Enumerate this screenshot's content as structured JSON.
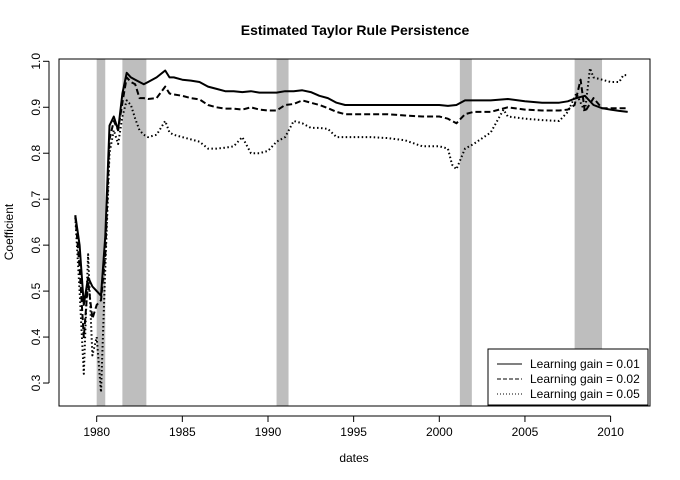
{
  "chart_data": {
    "type": "line",
    "title": "Estimated Taylor Rule Persistence",
    "xlabel": "dates",
    "ylabel": "Coefficient",
    "xlim": [
      1977.8,
      2012.3
    ],
    "ylim": [
      0.25,
      1.005
    ],
    "xticks": [
      1980,
      1985,
      1990,
      1995,
      2000,
      2005,
      2010
    ],
    "yticks": [
      0.3,
      0.4,
      0.5,
      0.6,
      0.7,
      0.8,
      0.9,
      1.0
    ],
    "ytick_labels": [
      "0.3",
      "0.4",
      "0.5",
      "0.6",
      "0.7",
      "0.8",
      "0.9",
      "1.0"
    ],
    "grid": false,
    "legend_position": "bottom-right",
    "recession_bands": [
      [
        1980.0,
        1980.5
      ],
      [
        1981.5,
        1982.9
      ],
      [
        1990.5,
        1991.2
      ],
      [
        2001.2,
        2001.9
      ],
      [
        2007.9,
        2009.5
      ]
    ],
    "band_color": "#bebebe",
    "line_color": "#000000",
    "series": [
      {
        "name": "Learning gain = 0.01",
        "style": "solid",
        "x": [
          1978.75,
          1979.0,
          1979.25,
          1979.5,
          1979.75,
          1980.0,
          1980.25,
          1980.5,
          1980.75,
          1981.0,
          1981.25,
          1981.5,
          1981.75,
          1982.0,
          1982.25,
          1982.5,
          1982.75,
          1983.0,
          1983.5,
          1984.0,
          1984.25,
          1984.5,
          1985.0,
          1985.5,
          1986.0,
          1986.5,
          1987.0,
          1987.5,
          1988.0,
          1988.5,
          1989.0,
          1989.5,
          1990.0,
          1990.5,
          1991.0,
          1991.5,
          1992.0,
          1992.5,
          1993.0,
          1993.5,
          1994.0,
          1994.5,
          1995.0,
          1996.0,
          1997.0,
          1998.0,
          1999.0,
          2000.0,
          2000.5,
          2001.0,
          2001.5,
          2002.0,
          2003.0,
          2004.0,
          2005.0,
          2006.0,
          2007.0,
          2007.5,
          2008.0,
          2008.5,
          2009.0,
          2009.5,
          2010.0,
          2010.5,
          2011.0
        ],
        "y": [
          0.665,
          0.6,
          0.47,
          0.53,
          0.51,
          0.5,
          0.49,
          0.62,
          0.86,
          0.88,
          0.85,
          0.93,
          0.975,
          0.965,
          0.96,
          0.955,
          0.95,
          0.955,
          0.965,
          0.98,
          0.965,
          0.965,
          0.96,
          0.958,
          0.955,
          0.945,
          0.94,
          0.935,
          0.935,
          0.933,
          0.935,
          0.932,
          0.932,
          0.932,
          0.935,
          0.935,
          0.937,
          0.933,
          0.925,
          0.92,
          0.91,
          0.905,
          0.905,
          0.905,
          0.905,
          0.905,
          0.905,
          0.905,
          0.903,
          0.905,
          0.915,
          0.915,
          0.915,
          0.918,
          0.913,
          0.91,
          0.91,
          0.913,
          0.92,
          0.925,
          0.905,
          0.898,
          0.895,
          0.892,
          0.89
        ]
      },
      {
        "name": "Learning gain = 0.02",
        "style": "dashed",
        "x": [
          1978.75,
          1979.0,
          1979.25,
          1979.5,
          1979.75,
          1980.0,
          1980.25,
          1980.5,
          1980.75,
          1981.0,
          1981.25,
          1981.5,
          1981.75,
          1982.0,
          1982.25,
          1982.5,
          1982.75,
          1983.0,
          1983.5,
          1984.0,
          1984.25,
          1984.5,
          1985.0,
          1985.5,
          1986.0,
          1986.5,
          1987.0,
          1987.5,
          1988.0,
          1988.5,
          1989.0,
          1989.5,
          1990.0,
          1990.5,
          1991.0,
          1991.5,
          1992.0,
          1992.5,
          1993.0,
          1993.5,
          1994.0,
          1994.5,
          1995.0,
          1996.0,
          1997.0,
          1998.0,
          1999.0,
          2000.0,
          2000.5,
          2001.0,
          2001.5,
          2002.0,
          2003.0,
          2004.0,
          2005.0,
          2006.0,
          2007.0,
          2007.5,
          2007.9,
          2008.25,
          2008.5,
          2009.0,
          2009.5,
          2010.0,
          2010.5,
          2011.0
        ],
        "y": [
          0.665,
          0.55,
          0.4,
          0.52,
          0.44,
          0.47,
          0.48,
          0.58,
          0.83,
          0.87,
          0.85,
          0.91,
          0.965,
          0.955,
          0.95,
          0.92,
          0.92,
          0.918,
          0.92,
          0.945,
          0.93,
          0.928,
          0.925,
          0.92,
          0.917,
          0.905,
          0.9,
          0.897,
          0.897,
          0.895,
          0.9,
          0.895,
          0.893,
          0.893,
          0.905,
          0.907,
          0.915,
          0.91,
          0.905,
          0.898,
          0.89,
          0.885,
          0.885,
          0.885,
          0.885,
          0.882,
          0.88,
          0.88,
          0.875,
          0.865,
          0.885,
          0.89,
          0.89,
          0.9,
          0.895,
          0.893,
          0.893,
          0.895,
          0.905,
          0.96,
          0.89,
          0.92,
          0.898,
          0.898,
          0.898,
          0.898
        ]
      },
      {
        "name": "Learning gain = 0.05",
        "style": "dotted",
        "x": [
          1978.75,
          1979.0,
          1979.25,
          1979.5,
          1979.75,
          1980.0,
          1980.25,
          1980.5,
          1980.75,
          1981.0,
          1981.25,
          1981.5,
          1981.75,
          1982.0,
          1982.25,
          1982.5,
          1982.75,
          1983.0,
          1983.5,
          1984.0,
          1984.25,
          1984.5,
          1985.0,
          1985.5,
          1986.0,
          1986.5,
          1987.0,
          1987.5,
          1988.0,
          1988.5,
          1989.0,
          1989.5,
          1990.0,
          1990.5,
          1991.0,
          1991.5,
          1992.0,
          1992.5,
          1993.0,
          1993.5,
          1994.0,
          1994.5,
          1995.0,
          1996.0,
          1997.0,
          1998.0,
          1999.0,
          2000.0,
          2000.5,
          2000.75,
          2001.0,
          2001.5,
          2002.0,
          2003.0,
          2003.75,
          2004.0,
          2005.0,
          2006.0,
          2007.0,
          2007.5,
          2008.0,
          2008.5,
          2008.8,
          2009.0,
          2009.5,
          2010.0,
          2010.5,
          2010.75,
          2011.0
        ],
        "y": [
          0.66,
          0.5,
          0.32,
          0.58,
          0.36,
          0.4,
          0.28,
          0.55,
          0.8,
          0.85,
          0.82,
          0.88,
          0.915,
          0.905,
          0.875,
          0.85,
          0.84,
          0.835,
          0.84,
          0.87,
          0.845,
          0.84,
          0.835,
          0.83,
          0.825,
          0.81,
          0.81,
          0.812,
          0.815,
          0.835,
          0.8,
          0.8,
          0.805,
          0.825,
          0.835,
          0.87,
          0.865,
          0.855,
          0.855,
          0.853,
          0.835,
          0.835,
          0.835,
          0.835,
          0.833,
          0.828,
          0.815,
          0.815,
          0.81,
          0.775,
          0.765,
          0.81,
          0.82,
          0.845,
          0.895,
          0.88,
          0.875,
          0.872,
          0.87,
          0.89,
          0.93,
          0.89,
          0.985,
          0.965,
          0.96,
          0.955,
          0.955,
          0.97,
          0.97
        ]
      }
    ]
  }
}
